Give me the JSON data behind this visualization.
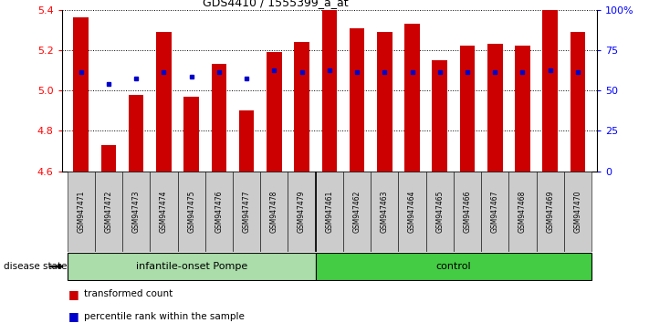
{
  "title": "GDS4410 / 1555399_a_at",
  "samples": [
    "GSM947471",
    "GSM947472",
    "GSM947473",
    "GSM947474",
    "GSM947475",
    "GSM947476",
    "GSM947477",
    "GSM947478",
    "GSM947479",
    "GSM947461",
    "GSM947462",
    "GSM947463",
    "GSM947464",
    "GSM947465",
    "GSM947466",
    "GSM947467",
    "GSM947468",
    "GSM947469",
    "GSM947470"
  ],
  "red_values": [
    5.36,
    4.73,
    4.98,
    5.29,
    4.97,
    5.13,
    4.9,
    5.19,
    5.24,
    5.4,
    5.31,
    5.29,
    5.33,
    5.15,
    5.22,
    5.23,
    5.22,
    5.4,
    5.29
  ],
  "blue_values": [
    5.09,
    5.03,
    5.06,
    5.09,
    5.07,
    5.09,
    5.06,
    5.1,
    5.09,
    5.1,
    5.09,
    5.09,
    5.09,
    5.09,
    5.09,
    5.09,
    5.09,
    5.1,
    5.09
  ],
  "ymin": 4.6,
  "ymax": 5.4,
  "yticks": [
    4.6,
    4.8,
    5.0,
    5.2,
    5.4
  ],
  "right_ytick_values": [
    0,
    25,
    50,
    75,
    100
  ],
  "right_ytick_labels": [
    "0",
    "25",
    "50",
    "75",
    "100%"
  ],
  "group1_label": "infantile-onset Pompe",
  "group2_label": "control",
  "group1_count": 9,
  "group2_count": 10,
  "disease_state_label": "disease state",
  "legend1": "transformed count",
  "legend2": "percentile rank within the sample",
  "bar_color": "#cc0000",
  "dot_color": "#0000cc",
  "group1_bg": "#aaddaa",
  "group2_bg": "#44cc44",
  "tick_bg": "#cccccc",
  "bar_width": 0.55
}
